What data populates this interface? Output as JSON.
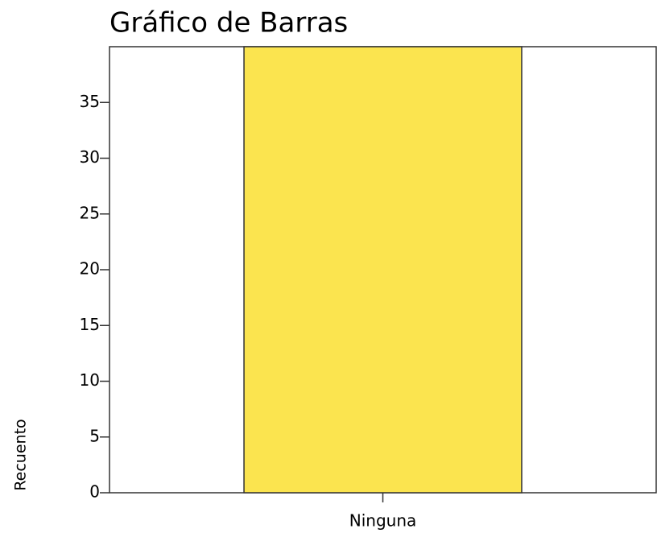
{
  "chart_data": {
    "type": "bar",
    "title": "Gráfico de Barras",
    "y_label": "Recuento",
    "categories": [
      "Ninguna"
    ],
    "values": [
      40
    ],
    "color": "#fbe44f",
    "ylim": [
      0,
      40
    ],
    "yticks": [
      0,
      5,
      10,
      15,
      20,
      25,
      30,
      35
    ]
  }
}
